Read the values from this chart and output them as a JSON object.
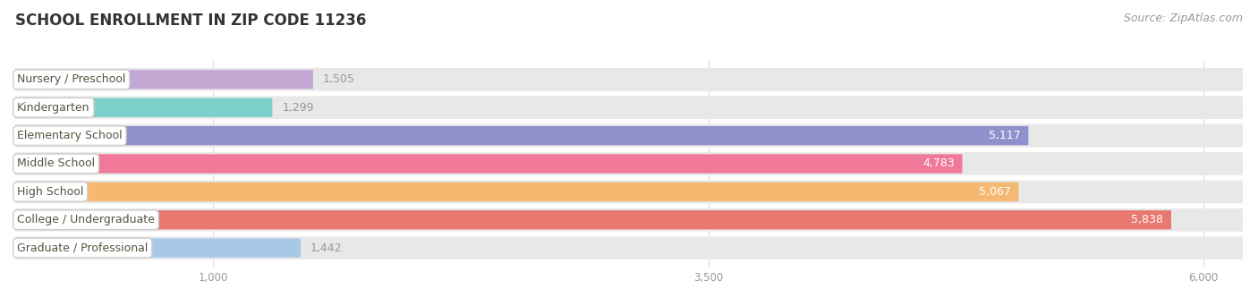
{
  "title": "SCHOOL ENROLLMENT IN ZIP CODE 11236",
  "source": "Source: ZipAtlas.com",
  "categories": [
    "Nursery / Preschool",
    "Kindergarten",
    "Elementary School",
    "Middle School",
    "High School",
    "College / Undergraduate",
    "Graduate / Professional"
  ],
  "values": [
    1505,
    1299,
    5117,
    4783,
    5067,
    5838,
    1442
  ],
  "bar_colors": [
    "#c4a8d4",
    "#7dcfca",
    "#9090cc",
    "#f07898",
    "#f5b870",
    "#e87870",
    "#a8c8e8"
  ],
  "track_color": "#e8e8e8",
  "value_label_color_inside": "#ffffff",
  "value_label_color_outside": "#999999",
  "xlim_max": 6200,
  "xticks": [
    1000,
    3500,
    6000
  ],
  "title_fontsize": 12,
  "source_fontsize": 9,
  "label_fontsize": 9,
  "value_fontsize": 9,
  "background_color": "#ffffff",
  "threshold_inside": 2000,
  "label_text_color": "#555544"
}
